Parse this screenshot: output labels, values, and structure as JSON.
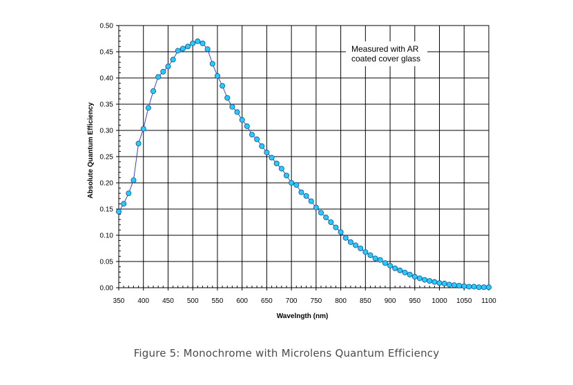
{
  "caption": "Figure 5: Monochrome with Microlens Quantum Efficiency",
  "chart_data": {
    "type": "line",
    "title": "",
    "xlabel": "Wavelngth (nm)",
    "ylabel": "Absolute Quantum Efficiency",
    "xlim": [
      350,
      1100
    ],
    "ylim": [
      0,
      0.5
    ],
    "xticks": [
      "350",
      "400",
      "450",
      "500",
      "550",
      "600",
      "650",
      "700",
      "750",
      "800",
      "850",
      "900",
      "950",
      "1000",
      "1050",
      "1100"
    ],
    "yticks": [
      "0.00",
      "0.05",
      "0.10",
      "0.15",
      "0.20",
      "0.25",
      "0.30",
      "0.35",
      "0.40",
      "0.45",
      "0.50"
    ],
    "grid": true,
    "annotation": [
      "Measured with AR",
      "coated cover glass"
    ],
    "line_color": "#3344cc",
    "marker_color": "#22ccff",
    "series": [
      {
        "x": [
          350,
          360,
          370,
          380,
          390,
          400,
          410,
          420,
          430,
          440,
          450,
          460,
          470,
          480,
          490,
          500,
          510,
          520,
          530,
          540,
          550,
          560,
          570,
          580,
          590,
          600,
          610,
          620,
          630,
          640,
          650,
          660,
          670,
          680,
          690,
          700,
          710,
          720,
          730,
          740,
          750,
          760,
          770,
          780,
          790,
          800,
          810,
          820,
          830,
          840,
          850,
          860,
          870,
          880,
          890,
          900,
          910,
          920,
          930,
          940,
          950,
          960,
          970,
          980,
          990,
          1000,
          1010,
          1020,
          1030,
          1040,
          1050,
          1060,
          1070,
          1080,
          1090,
          1100
        ],
        "values": [
          0.145,
          0.16,
          0.18,
          0.205,
          0.275,
          0.303,
          0.343,
          0.375,
          0.402,
          0.412,
          0.422,
          0.435,
          0.452,
          0.456,
          0.46,
          0.466,
          0.47,
          0.466,
          0.455,
          0.427,
          0.404,
          0.385,
          0.362,
          0.345,
          0.335,
          0.32,
          0.308,
          0.292,
          0.283,
          0.27,
          0.258,
          0.248,
          0.237,
          0.227,
          0.214,
          0.2,
          0.196,
          0.182,
          0.175,
          0.165,
          0.153,
          0.143,
          0.134,
          0.125,
          0.115,
          0.106,
          0.095,
          0.087,
          0.081,
          0.075,
          0.068,
          0.062,
          0.056,
          0.053,
          0.047,
          0.042,
          0.037,
          0.033,
          0.029,
          0.025,
          0.021,
          0.018,
          0.015,
          0.013,
          0.011,
          0.009,
          0.008,
          0.006,
          0.005,
          0.004,
          0.003,
          0.002,
          0.002,
          0.001,
          0.001,
          0.001
        ]
      }
    ]
  }
}
